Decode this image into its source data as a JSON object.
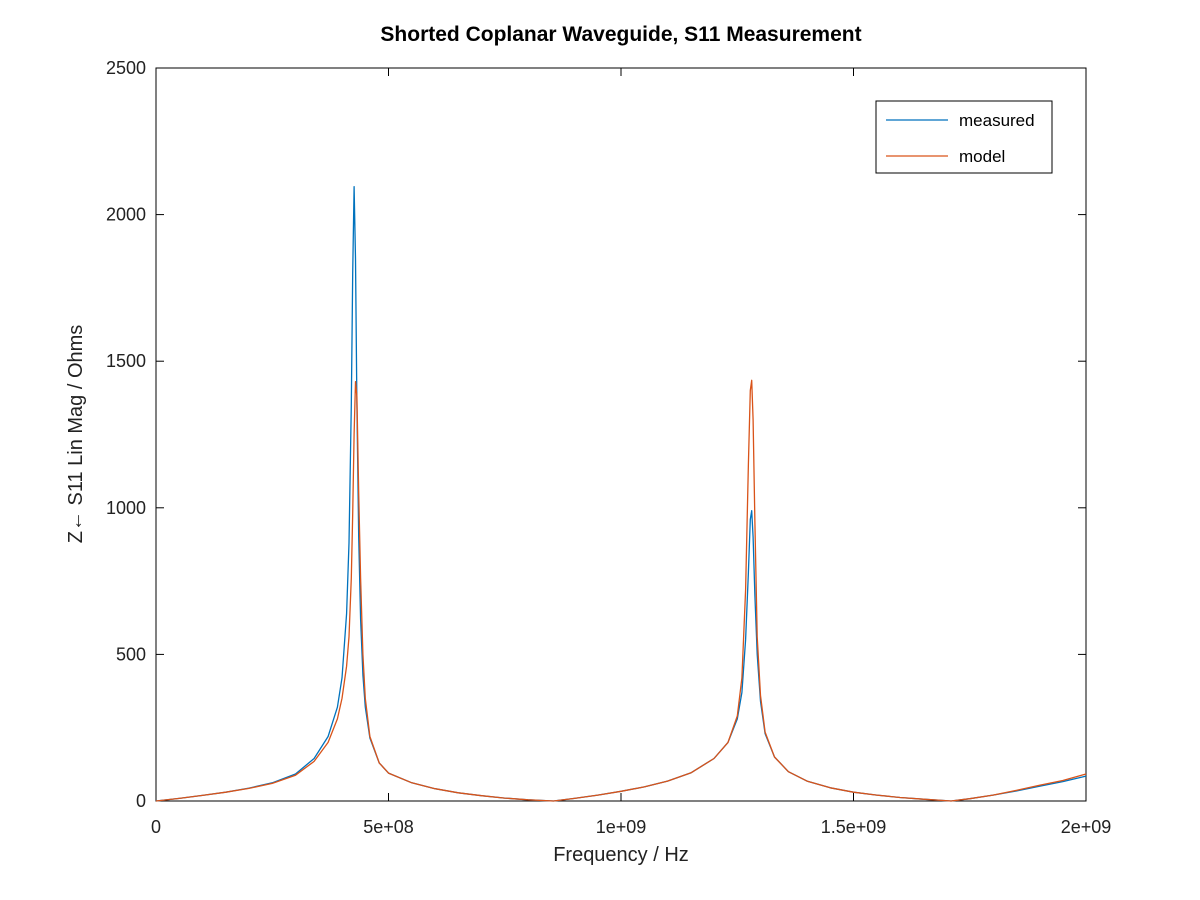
{
  "chart_data": {
    "type": "line",
    "title": "Shorted Coplanar Waveguide, S11 Measurement",
    "xlabel": "Frequency / Hz",
    "ylabel": "Z← S11 Lin Mag / Ohms",
    "xlim": [
      0,
      2000000000
    ],
    "ylim": [
      0,
      2500
    ],
    "xticks": [
      0,
      500000000,
      1000000000,
      1500000000,
      2000000000
    ],
    "xtick_labels": [
      "0",
      "5e+08",
      "1e+09",
      "1.5e+09",
      "2e+09"
    ],
    "yticks": [
      0,
      500,
      1000,
      1500,
      2000,
      2500
    ],
    "ytick_labels": [
      "0",
      "500",
      "1000",
      "1500",
      "2000",
      "2500"
    ],
    "grid": false,
    "legend_position": "top-right",
    "series": [
      {
        "name": "measured",
        "color": "#0072bd",
        "x": [
          0,
          50000000,
          100000000,
          150000000,
          200000000,
          250000000,
          300000000,
          340000000,
          370000000,
          390000000,
          400000000,
          410000000,
          415000000,
          420000000,
          423000000,
          426000000,
          429000000,
          432000000,
          436000000,
          440000000,
          445000000,
          450000000,
          460000000,
          480000000,
          500000000,
          550000000,
          600000000,
          650000000,
          700000000,
          750000000,
          800000000,
          855000000,
          900000000,
          950000000,
          1000000000,
          1050000000,
          1100000000,
          1150000000,
          1200000000,
          1230000000,
          1250000000,
          1260000000,
          1268000000,
          1274000000,
          1278000000,
          1281000000,
          1284000000,
          1288000000,
          1293000000,
          1300000000,
          1310000000,
          1330000000,
          1360000000,
          1400000000,
          1450000000,
          1500000000,
          1550000000,
          1600000000,
          1650000000,
          1710000000,
          1750000000,
          1800000000,
          1850000000,
          1900000000,
          1950000000,
          2000000000
        ],
        "y": [
          0,
          9,
          19,
          30,
          44,
          62,
          92,
          145,
          220,
          320,
          420,
          640,
          880,
          1350,
          1800,
          2095,
          1850,
          1350,
          900,
          620,
          430,
          320,
          215,
          130,
          95,
          62,
          42,
          28,
          18,
          10,
          4,
          0,
          9,
          20,
          33,
          48,
          68,
          96,
          145,
          200,
          280,
          370,
          550,
          780,
          960,
          990,
          900,
          700,
          500,
          340,
          230,
          150,
          100,
          68,
          45,
          30,
          20,
          12,
          6,
          0,
          8,
          20,
          34,
          50,
          66,
          85
        ]
      },
      {
        "name": "model",
        "color": "#d95319",
        "x": [
          0,
          50000000,
          100000000,
          150000000,
          200000000,
          250000000,
          300000000,
          340000000,
          370000000,
          390000000,
          400000000,
          410000000,
          415000000,
          420000000,
          423000000,
          426000000,
          429000000,
          432000000,
          436000000,
          440000000,
          445000000,
          450000000,
          460000000,
          480000000,
          500000000,
          550000000,
          600000000,
          650000000,
          700000000,
          750000000,
          800000000,
          855000000,
          900000000,
          950000000,
          1000000000,
          1050000000,
          1100000000,
          1150000000,
          1200000000,
          1230000000,
          1250000000,
          1260000000,
          1268000000,
          1274000000,
          1278000000,
          1281000000,
          1284000000,
          1288000000,
          1293000000,
          1300000000,
          1310000000,
          1330000000,
          1360000000,
          1400000000,
          1450000000,
          1500000000,
          1550000000,
          1600000000,
          1650000000,
          1710000000,
          1750000000,
          1800000000,
          1850000000,
          1900000000,
          1950000000,
          2000000000
        ],
        "y": [
          0,
          9,
          19,
          30,
          43,
          60,
          88,
          135,
          200,
          280,
          350,
          460,
          560,
          760,
          980,
          1250,
          1430,
          1380,
          1050,
          760,
          500,
          350,
          220,
          130,
          95,
          62,
          42,
          28,
          18,
          10,
          4,
          0,
          9,
          20,
          33,
          48,
          68,
          96,
          145,
          200,
          290,
          420,
          720,
          1150,
          1400,
          1435,
          1300,
          950,
          560,
          360,
          235,
          150,
          100,
          68,
          45,
          30,
          20,
          12,
          6,
          0,
          8,
          20,
          36,
          54,
          70,
          92
        ]
      }
    ]
  }
}
